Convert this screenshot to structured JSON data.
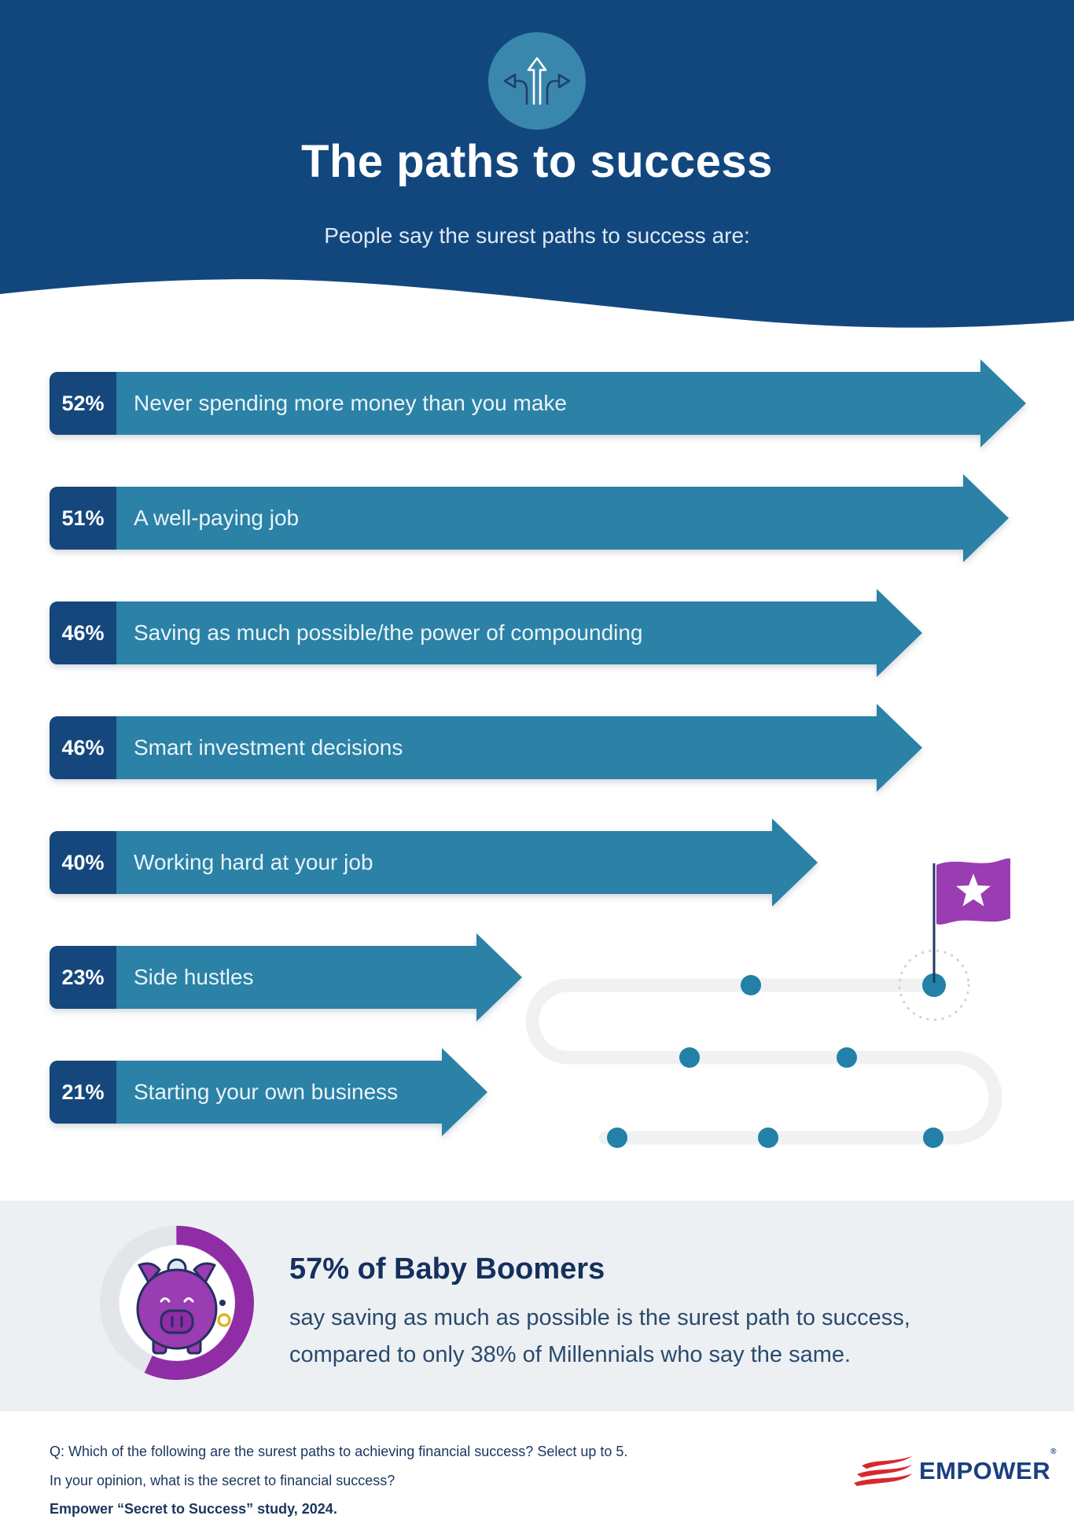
{
  "header": {
    "title": "The paths to success",
    "subtitle": "People say the surest paths to success are:",
    "icon": "three-way-directions-icon"
  },
  "chart_data": {
    "type": "bar",
    "orientation": "horizontal",
    "unit": "percent",
    "categories": [
      "Never spending more money than you make",
      "A well-paying job",
      "Saving as much possible/the power of compounding",
      "Smart investment decisions",
      "Working hard at your job",
      "Side hustles",
      "Starting your own business"
    ],
    "values": [
      52,
      51,
      46,
      46,
      40,
      23,
      21
    ],
    "value_labels": [
      "52%",
      "51%",
      "46%",
      "46%",
      "40%",
      "23%",
      "21%"
    ],
    "title": "The paths to success",
    "xlabel": "",
    "ylabel": "",
    "xlim": [
      0,
      55
    ],
    "grid": false,
    "legend": false
  },
  "path_graphic": {
    "description": "winding road to a goal flag with milestone dots",
    "milestone_dots": 7,
    "flag_icon": "goal-flag-star-icon"
  },
  "highlight": {
    "headline": "57% of Baby Boomers",
    "line1": "say saving as much as possible is the surest path to success,",
    "line2": "compared to only 38% of Millennials who say the same.",
    "donut_percent": 57,
    "icon": "piggy-bank-icon"
  },
  "footer": {
    "line1": "Q: Which of the following are the surest paths to achieving financial success? Select up to 5.",
    "line2": "In your opinion, what is the secret to financial success?",
    "line3": "Empower “Secret to Success” study, 2024.",
    "brand": "EMPOWER",
    "brand_reg": "®"
  },
  "colors": {
    "header_navy": "#12477e",
    "icon_circle_teal": "#3a87ad",
    "bar_teal": "#2b81a6",
    "label_navy": "#15477d",
    "dot_teal": "#2380a7",
    "flag_purple": "#9a3cb2",
    "donut_purple": "#8f2ca6",
    "band_gray": "#edf0f2",
    "path_gray": "#eff1f3",
    "brand_red": "#d7282f",
    "brand_navy": "#1b4080"
  }
}
